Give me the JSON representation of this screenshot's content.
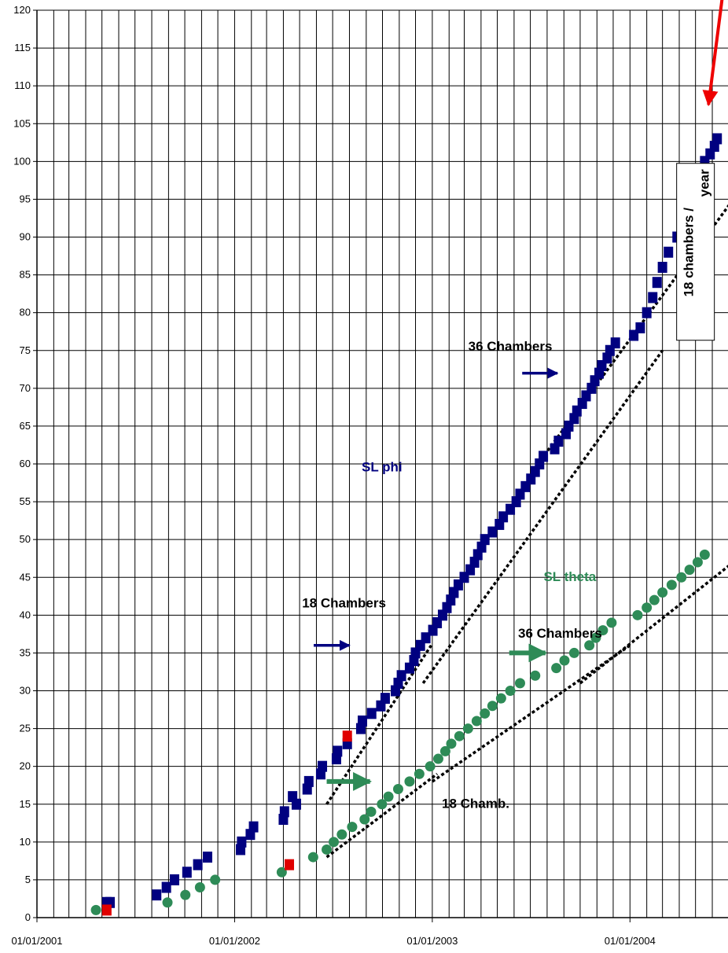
{
  "chart_data": {
    "type": "scatter",
    "title": "",
    "xlabel": "",
    "ylabel": "",
    "x_axis": {
      "type": "date",
      "range": [
        "2001-01-01",
        "2004-06-30"
      ],
      "tick_labels": [
        "01/01/2001",
        "01/01/2002",
        "01/01/2003",
        "01/01/2004"
      ],
      "tick_dates": [
        "2001-01-01",
        "2002-01-01",
        "2003-01-01",
        "2004-01-01"
      ]
    },
    "y_axis": {
      "range": [
        0,
        120
      ],
      "step": 5
    },
    "grid": true,
    "legend": "none",
    "colors": {
      "phi": "#000080",
      "theta": "#2e8b57",
      "highlight": "#e00000",
      "arrow_red": "#ee0000",
      "trend": "#000000"
    },
    "series": [
      {
        "name": "SL phi",
        "color": "#000080",
        "marker": "square",
        "points": [
          [
            "2001-05-10",
            2
          ],
          [
            "2001-05-16",
            2
          ],
          [
            "2001-08-10",
            3
          ],
          [
            "2001-08-28",
            4
          ],
          [
            "2001-09-12",
            5
          ],
          [
            "2001-10-05",
            6
          ],
          [
            "2001-10-25",
            7
          ],
          [
            "2001-11-12",
            8
          ],
          [
            "2002-01-12",
            9
          ],
          [
            "2002-01-14",
            10
          ],
          [
            "2002-01-30",
            11
          ],
          [
            "2002-02-05",
            12
          ],
          [
            "2002-04-01",
            13
          ],
          [
            "2002-04-03",
            14
          ],
          [
            "2002-04-25",
            15
          ],
          [
            "2002-04-18",
            16
          ],
          [
            "2002-05-15",
            17
          ],
          [
            "2002-05-18",
            18
          ],
          [
            "2002-06-09",
            19
          ],
          [
            "2002-06-12",
            20
          ],
          [
            "2002-07-08",
            21
          ],
          [
            "2002-07-10",
            22
          ],
          [
            "2002-07-28",
            23
          ],
          [
            "2002-08-22",
            25
          ],
          [
            "2002-08-25",
            26
          ],
          [
            "2002-09-11",
            27
          ],
          [
            "2002-09-28",
            28
          ],
          [
            "2002-10-06",
            29
          ],
          [
            "2002-10-25",
            30
          ],
          [
            "2002-10-30",
            31
          ],
          [
            "2002-11-05",
            32
          ],
          [
            "2002-11-20",
            33
          ],
          [
            "2002-11-28",
            34
          ],
          [
            "2002-12-01",
            35
          ],
          [
            "2002-12-10",
            36
          ],
          [
            "2002-12-20",
            37
          ],
          [
            "2003-01-02",
            38
          ],
          [
            "2003-01-10",
            39
          ],
          [
            "2003-01-20",
            40
          ],
          [
            "2003-01-28",
            41
          ],
          [
            "2003-02-04",
            42
          ],
          [
            "2003-02-10",
            43
          ],
          [
            "2003-02-18",
            44
          ],
          [
            "2003-03-01",
            45
          ],
          [
            "2003-03-12",
            46
          ],
          [
            "2003-03-20",
            47
          ],
          [
            "2003-03-26",
            48
          ],
          [
            "2003-04-02",
            49
          ],
          [
            "2003-04-08",
            50
          ],
          [
            "2003-04-22",
            51
          ],
          [
            "2003-05-05",
            52
          ],
          [
            "2003-05-12",
            53
          ],
          [
            "2003-05-25",
            54
          ],
          [
            "2003-06-05",
            55
          ],
          [
            "2003-06-12",
            56
          ],
          [
            "2003-06-22",
            57
          ],
          [
            "2003-07-02",
            58
          ],
          [
            "2003-07-10",
            59
          ],
          [
            "2003-07-18",
            60
          ],
          [
            "2003-07-25",
            61
          ],
          [
            "2003-08-15",
            62
          ],
          [
            "2003-08-22",
            63
          ],
          [
            "2003-09-05",
            64
          ],
          [
            "2003-09-10",
            65
          ],
          [
            "2003-09-20",
            66
          ],
          [
            "2003-09-25",
            67
          ],
          [
            "2003-10-05",
            68
          ],
          [
            "2003-10-12",
            69
          ],
          [
            "2003-10-22",
            70
          ],
          [
            "2003-10-28",
            71
          ],
          [
            "2003-11-05",
            72
          ],
          [
            "2003-11-10",
            73
          ],
          [
            "2003-11-20",
            74
          ],
          [
            "2003-11-25",
            75
          ],
          [
            "2003-12-05",
            76
          ],
          [
            "2004-01-08",
            77
          ],
          [
            "2004-01-20",
            78
          ],
          [
            "2004-02-01",
            80
          ],
          [
            "2004-02-12",
            82
          ],
          [
            "2004-02-20",
            84
          ],
          [
            "2004-03-01",
            86
          ],
          [
            "2004-03-12",
            88
          ],
          [
            "2004-03-28",
            90
          ],
          [
            "2004-04-06",
            92
          ],
          [
            "2004-04-20",
            94
          ],
          [
            "2004-04-30",
            96
          ],
          [
            "2004-05-10",
            98
          ],
          [
            "2004-05-18",
            100
          ],
          [
            "2004-05-28",
            101
          ],
          [
            "2004-06-05",
            102
          ],
          [
            "2004-06-10",
            103
          ]
        ]
      },
      {
        "name": "SL theta",
        "color": "#2e8b57",
        "marker": "circle",
        "points": [
          [
            "2001-04-20",
            1
          ],
          [
            "2001-08-30",
            2
          ],
          [
            "2001-10-02",
            3
          ],
          [
            "2001-10-29",
            4
          ],
          [
            "2001-11-26",
            5
          ],
          [
            "2002-03-29",
            6
          ],
          [
            "2002-05-26",
            8
          ],
          [
            "2002-06-20",
            9
          ],
          [
            "2002-07-03",
            10
          ],
          [
            "2002-07-18",
            11
          ],
          [
            "2002-08-06",
            12
          ],
          [
            "2002-08-29",
            13
          ],
          [
            "2002-09-10",
            14
          ],
          [
            "2002-09-30",
            15
          ],
          [
            "2002-10-12",
            16
          ],
          [
            "2002-10-30",
            17
          ],
          [
            "2002-11-20",
            18
          ],
          [
            "2002-12-08",
            19
          ],
          [
            "2002-12-28",
            20
          ],
          [
            "2003-01-12",
            21
          ],
          [
            "2003-01-25",
            22
          ],
          [
            "2003-02-05",
            23
          ],
          [
            "2003-02-20",
            24
          ],
          [
            "2003-03-08",
            25
          ],
          [
            "2003-03-24",
            26
          ],
          [
            "2003-04-08",
            27
          ],
          [
            "2003-04-22",
            28
          ],
          [
            "2003-05-08",
            29
          ],
          [
            "2003-05-25",
            30
          ],
          [
            "2003-06-12",
            31
          ],
          [
            "2003-07-10",
            32
          ],
          [
            "2003-08-18",
            33
          ],
          [
            "2003-09-02",
            34
          ],
          [
            "2003-09-20",
            35
          ],
          [
            "2003-10-18",
            36
          ],
          [
            "2003-10-30",
            37
          ],
          [
            "2003-11-12",
            38
          ],
          [
            "2003-11-28",
            39
          ],
          [
            "2004-01-15",
            40
          ],
          [
            "2004-02-01",
            41
          ],
          [
            "2004-02-15",
            42
          ],
          [
            "2004-03-01",
            43
          ],
          [
            "2004-03-18",
            44
          ],
          [
            "2004-04-05",
            45
          ],
          [
            "2004-04-20",
            46
          ],
          [
            "2004-05-05",
            47
          ],
          [
            "2004-05-18",
            48
          ]
        ]
      },
      {
        "name": "",
        "color": "#e00000",
        "marker": "square",
        "points": [
          [
            "2001-05-10",
            1
          ],
          [
            "2002-04-12",
            7
          ],
          [
            "2002-07-28",
            24
          ]
        ]
      }
    ],
    "trend_lines": [
      {
        "from": [
          "2002-06-20",
          15
        ],
        "to": [
          "2002-12-30",
          36
        ]
      },
      {
        "from": [
          "2002-12-15",
          31
        ],
        "to": [
          "2004-03-01",
          75
        ]
      },
      {
        "from": [
          "2003-07-15",
          60
        ],
        "to": [
          "2004-07-10",
          95
        ]
      },
      {
        "from": [
          "2002-06-20",
          8
        ],
        "to": [
          "2003-01-10",
          19
        ]
      },
      {
        "from": [
          "2003-01-01",
          18
        ],
        "to": [
          "2004-01-01",
          36
        ]
      },
      {
        "from": [
          "2003-10-01",
          31
        ],
        "to": [
          "2004-07-10",
          47
        ]
      }
    ],
    "annotations": [
      {
        "id": "sl-phi",
        "text": "SL phi",
        "color": "#000080",
        "at": [
          "2002-09-30",
          59
        ],
        "size": 20
      },
      {
        "id": "sl-theta",
        "text": "SL theta",
        "color": "#2e8b57",
        "at": [
          "2003-09-12",
          44.5
        ],
        "size": 20
      },
      {
        "id": "phi-18",
        "text": "18 Chambers",
        "color": "#000000",
        "at": [
          "2002-07-22",
          41
        ]
      },
      {
        "id": "phi-36",
        "text": "36 Chambers",
        "color": "#000000",
        "at": [
          "2003-05-25",
          75
        ]
      },
      {
        "id": "theta-36",
        "text": "36 Chambers",
        "color": "#000000",
        "at": [
          "2003-08-25",
          37
        ]
      },
      {
        "id": "theta-18",
        "text": "18 Chamb.",
        "color": "#000000",
        "at": [
          "2003-03-22",
          14.5
        ]
      },
      {
        "id": "rate-box",
        "text": "18 chambers /\nyear",
        "color": "#000000",
        "at": [
          "2004-05-01",
          88
        ],
        "rotated": true
      }
    ],
    "arrows": [
      {
        "color": "#000080",
        "from": [
          "2002-05-27",
          36
        ],
        "to": [
          "2002-08-01",
          36
        ]
      },
      {
        "color": "#000080",
        "from": [
          "2003-06-16",
          72
        ],
        "to": [
          "2003-08-20",
          72
        ]
      },
      {
        "color": "#2e8b57",
        "from": [
          "2002-06-20",
          18
        ],
        "to": [
          "2002-09-08",
          18
        ]
      },
      {
        "color": "#2e8b57",
        "from": [
          "2003-05-23",
          35
        ],
        "to": [
          "2003-07-29",
          35
        ]
      }
    ]
  }
}
